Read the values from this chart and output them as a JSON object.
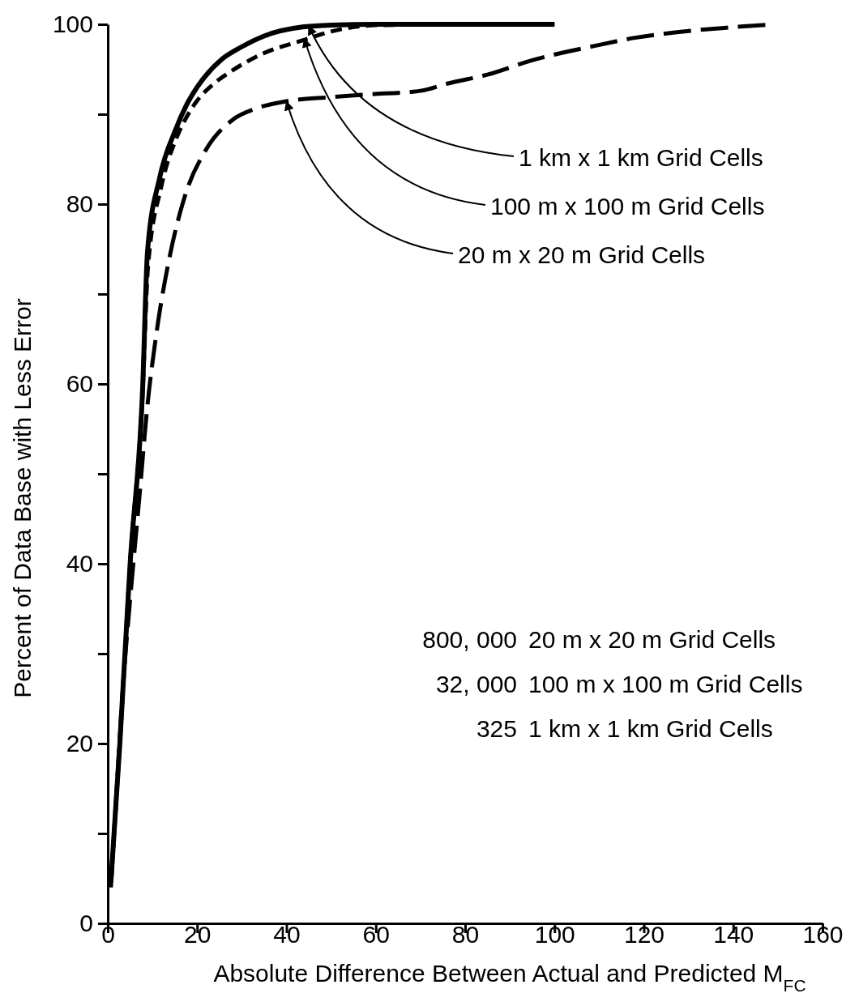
{
  "chart_data": {
    "type": "line",
    "xlabel": "Absolute Difference Between Actual and Predicted M$_{FC}$",
    "ylabel": "Percent of Data Base with Less Error",
    "xlim": [
      0,
      160
    ],
    "ylim": [
      0,
      100
    ],
    "xticks": [
      0,
      20,
      40,
      60,
      80,
      100,
      120,
      140,
      160
    ],
    "yticks": [
      0,
      {
        "value": 10,
        "label": null
      },
      20,
      {
        "value": 30,
        "label": null
      },
      40,
      {
        "value": 50,
        "label": null
      },
      60,
      {
        "value": 70,
        "label": null
      },
      80,
      {
        "value": 90,
        "label": null
      },
      100
    ],
    "grid": false,
    "marker": "none",
    "series": [
      {
        "color": "#000000",
        "line_style": "solid",
        "x": [
          0.7,
          2.7,
          5,
          7.8,
          8.9,
          11.6,
          15.2,
          17.6,
          20,
          25.5,
          30,
          35,
          43.6,
          50,
          60,
          80,
          100
        ],
        "values": [
          4.6,
          20,
          40,
          59.5,
          74.8,
          82.9,
          88.3,
          91,
          93,
          96.1,
          97.5,
          98.7,
          99.7,
          99.9,
          100,
          100,
          100
        ]
      },
      {
        "color": "#000000",
        "line_style": "dashed",
        "x": [
          0.7,
          2.7,
          5,
          7.8,
          9,
          12,
          15.5,
          18,
          20,
          24,
          28,
          35,
          43.6,
          50,
          60,
          80,
          100
        ],
        "values": [
          4.6,
          20,
          40,
          59,
          73,
          82,
          87.5,
          90,
          91.5,
          93.5,
          94.9,
          96.8,
          98.2,
          99.2,
          99.9,
          100,
          100
        ]
      },
      {
        "color": "#000000",
        "line_style": "dashed",
        "x": [
          0.7,
          2,
          3.5,
          5,
          7,
          8.9,
          11,
          14,
          17.6,
          21.8,
          28,
          33,
          39.5,
          50,
          58,
          70,
          76,
          85,
          95,
          109,
          118,
          127,
          138,
          149
        ],
        "values": [
          4,
          15,
          27,
          36,
          47,
          57.7,
          66,
          74.5,
          81.4,
          85.9,
          89.4,
          90.6,
          91.4,
          91.9,
          92.2,
          92.6,
          93.4,
          94.4,
          96,
          97.6,
          98.5,
          99.1,
          99.6,
          100
        ]
      }
    ],
    "annotations": [
      {
        "text": "1 km x 1 km Grid Cells",
        "x": 45,
        "y": 99.8
      },
      {
        "text": "100 m x 100 m Grid Cells",
        "x": 44,
        "y": 98.4
      },
      {
        "text": "20 m x 20 m Grid Cells",
        "x": 40,
        "y": 91.4
      },
      "800, 000",
      "20 m x 20 m Grid Cells",
      "32, 000",
      "100 m x 100 m Grid Cells",
      "325",
      "1 km x 1 km Grid Cells"
    ]
  }
}
